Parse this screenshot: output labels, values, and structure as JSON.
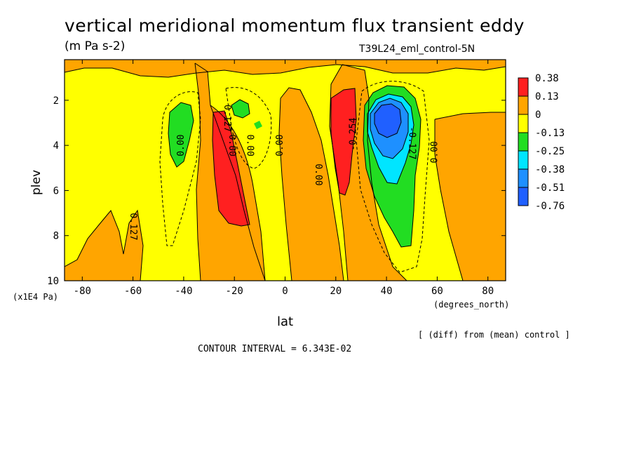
{
  "chart_data": {
    "type": "heatmap",
    "title": "vertical meridional momentum flux transient eddy",
    "units": "(m Pa s-2)",
    "run": "T39L24_eml_control-5N",
    "xlabel": "lat",
    "ylabel": "plev",
    "x_units_note": "(degrees_north)",
    "y_units_note": "(x1E4 Pa)",
    "x_ticks": [
      -80,
      -60,
      -40,
      -20,
      0,
      20,
      40,
      60,
      80
    ],
    "y_ticks": [
      2,
      4,
      6,
      8,
      10
    ],
    "xlim": [
      -87,
      87
    ],
    "ylim": [
      10,
      0.2
    ],
    "contour_labels": [
      "0.00",
      "0.00",
      "0.00",
      "0.00",
      "0.00",
      "0.00",
      "0.127",
      "0.127",
      "-0.254",
      "-0.127"
    ],
    "colorbar": {
      "levels": [
        "0.38",
        "0.13",
        "0",
        "-0.13",
        "-0.25",
        "-0.38",
        "-0.51",
        "-0.76"
      ],
      "colors": [
        "#ff2020",
        "#ffa500",
        "#ffff00",
        "#22dd22",
        "#00e5ff",
        "#1e90ff",
        "#2060ff"
      ]
    },
    "colors": {
      "yellow": "#ffff00",
      "orange": "#ffa500",
      "red": "#ff2020",
      "green": "#22dd22",
      "cyan": "#00e5ff",
      "dodger": "#1e90ff",
      "blue": "#2060ff"
    },
    "features": [
      {
        "sign": "positive",
        "level": "red",
        "lon_range": [
          -30,
          -15
        ],
        "plev_range": [
          1.8,
          7.6
        ],
        "label": "0.127"
      },
      {
        "sign": "positive",
        "level": "red",
        "lon_range": [
          18,
          30
        ],
        "plev_range": [
          1.5,
          6.2
        ],
        "label": "0.127"
      },
      {
        "sign": "negative",
        "level": "blue",
        "center": [
          40,
          2.8
        ],
        "label": "-0.254"
      },
      {
        "sign": "negative",
        "level": "green",
        "center": [
          -41,
          3.5
        ]
      }
    ],
    "annotation_diff": "[ (diff) from (mean) control ]",
    "contour_interval": "CONTOUR INTERVAL = 6.343E-02"
  }
}
